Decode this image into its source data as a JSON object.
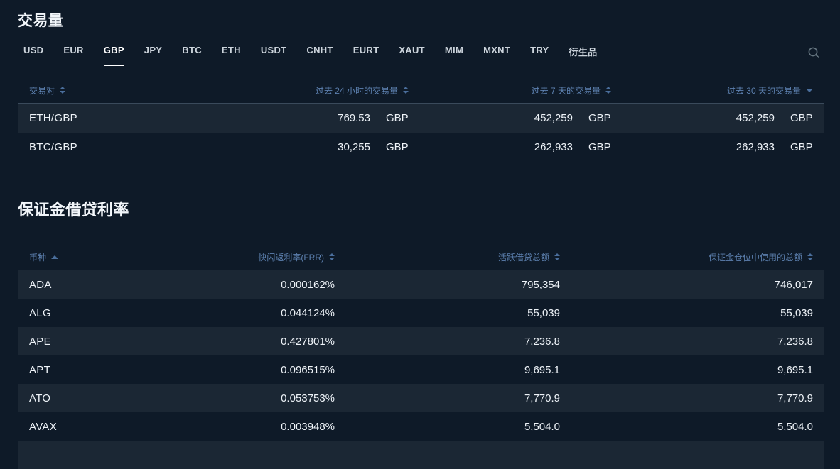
{
  "colors": {
    "background": "#0e1a28",
    "row_stripe": "#1b2734",
    "header_text": "#5d81b0",
    "body_text": "#eef3f8",
    "active_tab_underline": "#ffffff"
  },
  "volume": {
    "title": "交易量",
    "tabs": [
      "USD",
      "EUR",
      "GBP",
      "JPY",
      "BTC",
      "ETH",
      "USDT",
      "CNHT",
      "EURT",
      "XAUT",
      "MIM",
      "MXNT",
      "TRY",
      "衍生品"
    ],
    "active_tab": "GBP",
    "search_icon": "search-icon",
    "table": {
      "columns": [
        {
          "label": "交易对",
          "sort": "both",
          "align": "left"
        },
        {
          "label": "过去 24 小时的交易量",
          "sort": "both",
          "align": "right"
        },
        {
          "label": "过去 7 天的交易量",
          "sort": "both",
          "align": "right"
        },
        {
          "label": "过去 30 天的交易量",
          "sort": "desc",
          "align": "right"
        }
      ],
      "unit": "GBP",
      "rows": [
        {
          "pair": "ETH/GBP",
          "vol_24h": "769.53",
          "vol_7d": "452,259",
          "vol_30d": "452,259"
        },
        {
          "pair": "BTC/GBP",
          "vol_24h": "30,255",
          "vol_7d": "262,933",
          "vol_30d": "262,933"
        }
      ]
    }
  },
  "funding": {
    "title": "保证金借贷利率",
    "table": {
      "columns": [
        {
          "label": "币种",
          "sort": "asc",
          "align": "left"
        },
        {
          "label": "快闪返利率(FRR)",
          "sort": "both",
          "align": "right"
        },
        {
          "label": "活跃借贷总额",
          "sort": "both",
          "align": "right"
        },
        {
          "label": "保证金仓位中使用的总额",
          "sort": "both",
          "align": "right"
        }
      ],
      "rows": [
        {
          "coin": "ADA",
          "frr": "0.000162%",
          "active_total": "795,354",
          "used_total": "746,017"
        },
        {
          "coin": "ALG",
          "frr": "0.044124%",
          "active_total": "55,039",
          "used_total": "55,039"
        },
        {
          "coin": "APE",
          "frr": "0.427801%",
          "active_total": "7,236.8",
          "used_total": "7,236.8"
        },
        {
          "coin": "APT",
          "frr": "0.096515%",
          "active_total": "9,695.1",
          "used_total": "9,695.1"
        },
        {
          "coin": "ATO",
          "frr": "0.053753%",
          "active_total": "7,770.9",
          "used_total": "7,770.9"
        },
        {
          "coin": "AVAX",
          "frr": "0.003948%",
          "active_total": "5,504.0",
          "used_total": "5,504.0"
        }
      ]
    }
  }
}
